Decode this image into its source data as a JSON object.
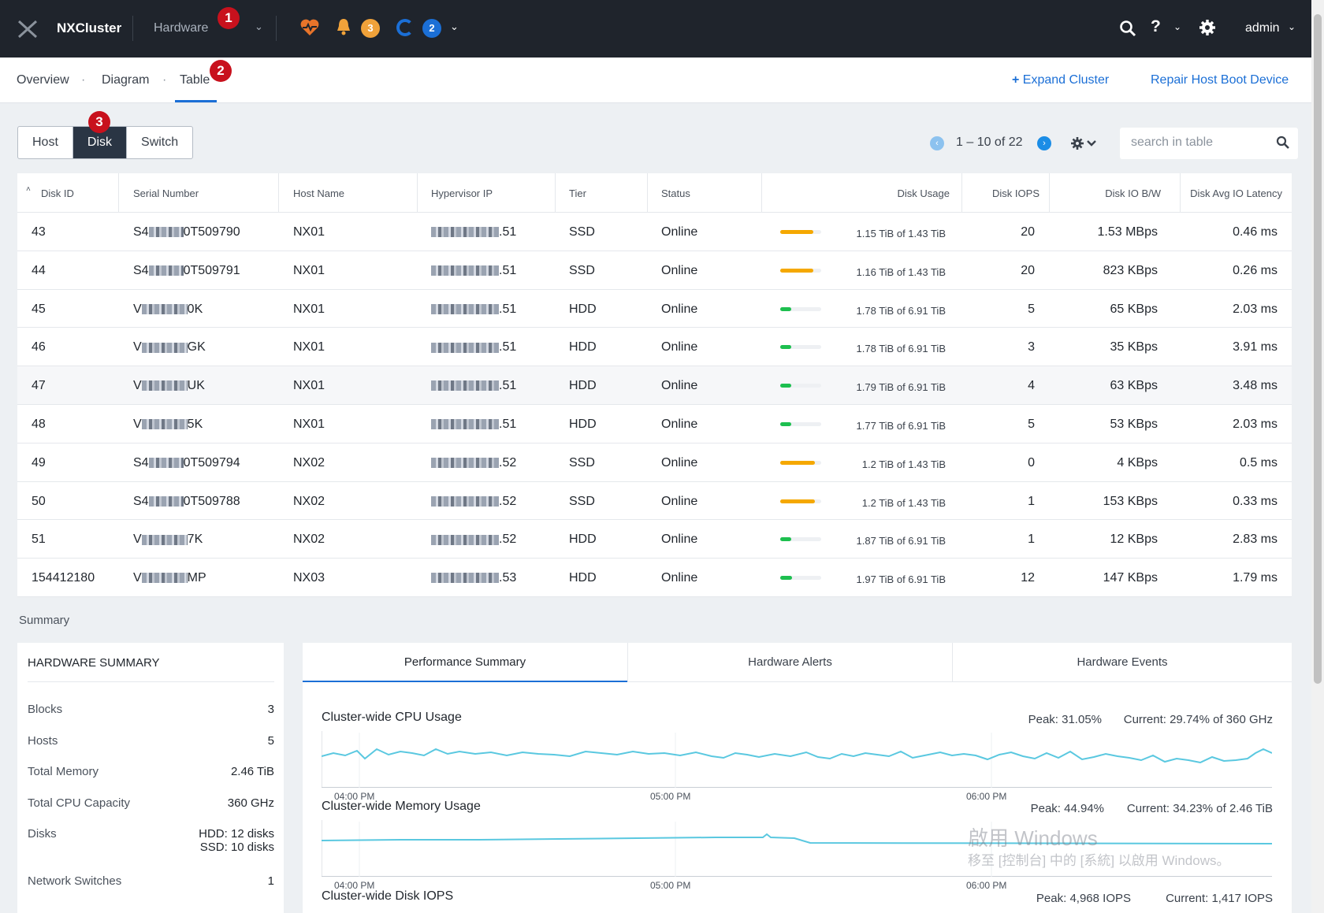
{
  "topbar": {
    "cluster_name": "NXCluster",
    "section": "Hardware",
    "alerts_count": "3",
    "tasks_count": "2",
    "help_label": "?",
    "user": "admin"
  },
  "markers": [
    "1",
    "2",
    "3"
  ],
  "subnav": {
    "tabs": [
      "Overview",
      "Diagram",
      "Table"
    ],
    "active_tab": "Table",
    "expand_cluster": "Expand Cluster",
    "repair_boot": "Repair Host Boot Device"
  },
  "view_toggle": {
    "options": [
      "Host",
      "Disk",
      "Switch"
    ],
    "selected": "Disk"
  },
  "pagination": {
    "range": "1 – 10 of 22"
  },
  "search": {
    "placeholder": "search in table",
    "value": ""
  },
  "table": {
    "columns": [
      "Disk ID",
      "Serial Number",
      "Host Name",
      "Hypervisor IP",
      "Tier",
      "Status",
      "Disk Usage",
      "Disk IOPS",
      "Disk IO B/W",
      "Disk Avg IO Latency"
    ],
    "sort_indicator": "˄",
    "rows": [
      {
        "id": "43",
        "serial_prefix": "S4",
        "serial_suffix": "0T509790",
        "host": "NX01",
        "ip_suffix": ".51",
        "tier": "SSD",
        "status": "Online",
        "usage": "1.15 TiB of 1.43 TiB",
        "usage_pct": 0.8,
        "iops": "20",
        "bw": "1.53 MBps",
        "latency": "0.46 ms"
      },
      {
        "id": "44",
        "serial_prefix": "S4",
        "serial_suffix": "0T509791",
        "host": "NX01",
        "ip_suffix": ".51",
        "tier": "SSD",
        "status": "Online",
        "usage": "1.16 TiB of 1.43 TiB",
        "usage_pct": 0.81,
        "iops": "20",
        "bw": "823 KBps",
        "latency": "0.26 ms"
      },
      {
        "id": "45",
        "serial_prefix": "V",
        "serial_suffix": "0K",
        "host": "NX01",
        "ip_suffix": ".51",
        "tier": "HDD",
        "status": "Online",
        "usage": "1.78 TiB of 6.91 TiB",
        "usage_pct": 0.26,
        "iops": "5",
        "bw": "65 KBps",
        "latency": "2.03 ms"
      },
      {
        "id": "46",
        "serial_prefix": "V",
        "serial_suffix": "GK",
        "host": "NX01",
        "ip_suffix": ".51",
        "tier": "HDD",
        "status": "Online",
        "usage": "1.78 TiB of 6.91 TiB",
        "usage_pct": 0.26,
        "iops": "3",
        "bw": "35 KBps",
        "latency": "3.91 ms"
      },
      {
        "id": "47",
        "serial_prefix": "V",
        "serial_suffix": "UK",
        "host": "NX01",
        "ip_suffix": ".51",
        "tier": "HDD",
        "status": "Online",
        "usage": "1.79 TiB of 6.91 TiB",
        "usage_pct": 0.26,
        "iops": "4",
        "bw": "63 KBps",
        "latency": "3.48 ms"
      },
      {
        "id": "48",
        "serial_prefix": "V",
        "serial_suffix": "5K",
        "host": "NX01",
        "ip_suffix": ".51",
        "tier": "HDD",
        "status": "Online",
        "usage": "1.77 TiB of 6.91 TiB",
        "usage_pct": 0.26,
        "iops": "5",
        "bw": "53 KBps",
        "latency": "2.03 ms"
      },
      {
        "id": "49",
        "serial_prefix": "S4",
        "serial_suffix": "0T509794",
        "host": "NX02",
        "ip_suffix": ".52",
        "tier": "SSD",
        "status": "Online",
        "usage": "1.2 TiB of 1.43 TiB",
        "usage_pct": 0.84,
        "iops": "0",
        "bw": "4 KBps",
        "latency": "0.5 ms"
      },
      {
        "id": "50",
        "serial_prefix": "S4",
        "serial_suffix": "0T509788",
        "host": "NX02",
        "ip_suffix": ".52",
        "tier": "SSD",
        "status": "Online",
        "usage": "1.2 TiB of 1.43 TiB",
        "usage_pct": 0.84,
        "iops": "1",
        "bw": "153 KBps",
        "latency": "0.33 ms"
      },
      {
        "id": "51",
        "serial_prefix": "V",
        "serial_suffix": "7K",
        "host": "NX02",
        "ip_suffix": ".52",
        "tier": "HDD",
        "status": "Online",
        "usage": "1.87 TiB of 6.91 TiB",
        "usage_pct": 0.27,
        "iops": "1",
        "bw": "12 KBps",
        "latency": "2.83 ms"
      },
      {
        "id": "154412180",
        "serial_prefix": "V",
        "serial_suffix": "MP",
        "host": "NX03",
        "ip_suffix": ".53",
        "tier": "HDD",
        "status": "Online",
        "usage": "1.97 TiB of 6.91 TiB",
        "usage_pct": 0.29,
        "iops": "12",
        "bw": "147 KBps",
        "latency": "1.79 ms"
      }
    ]
  },
  "summary": {
    "title": "Summary",
    "hardware": {
      "heading": "HARDWARE SUMMARY",
      "rows": [
        {
          "label": "Blocks",
          "value": "3"
        },
        {
          "label": "Hosts",
          "value": "5"
        },
        {
          "label": "Total Memory",
          "value": "2.46 TiB"
        },
        {
          "label": "Total CPU Capacity",
          "value": "360 GHz"
        },
        {
          "label": "Disks",
          "value": "HDD: 12 disks",
          "value2": "SSD: 10 disks"
        },
        {
          "label": "Network Switches",
          "value": "1"
        }
      ]
    },
    "tabs": [
      "Performance Summary",
      "Hardware Alerts",
      "Hardware Events"
    ],
    "active_tab": "Performance Summary",
    "charts": [
      {
        "title": "Cluster-wide CPU Usage",
        "peak": "Peak: 31.05%",
        "current": "Current: 29.74% of 360 GHz",
        "ticks": [
          "04:00 PM",
          "05:00 PM",
          "06:00 PM"
        ]
      },
      {
        "title": "Cluster-wide Memory Usage",
        "peak": "Peak: 44.94%",
        "current": "Current: 34.23% of 2.46 TiB",
        "ticks": [
          "04:00 PM",
          "05:00 PM",
          "06:00 PM"
        ]
      },
      {
        "title": "Cluster-wide Disk IOPS",
        "peak": "Peak: 4,968 IOPS",
        "current": "Current: 1,417 IOPS"
      }
    ]
  },
  "watermark": {
    "line1": "啟用 Windows",
    "line2": "移至 [控制台] 中的 [系統] 以啟用 Windows。"
  },
  "colors": {
    "ssd_bar": "#f5a800",
    "hdd_bar": "#1dbf4f",
    "chart_line": "#5ac8e0",
    "accent": "#1b6fd6"
  }
}
